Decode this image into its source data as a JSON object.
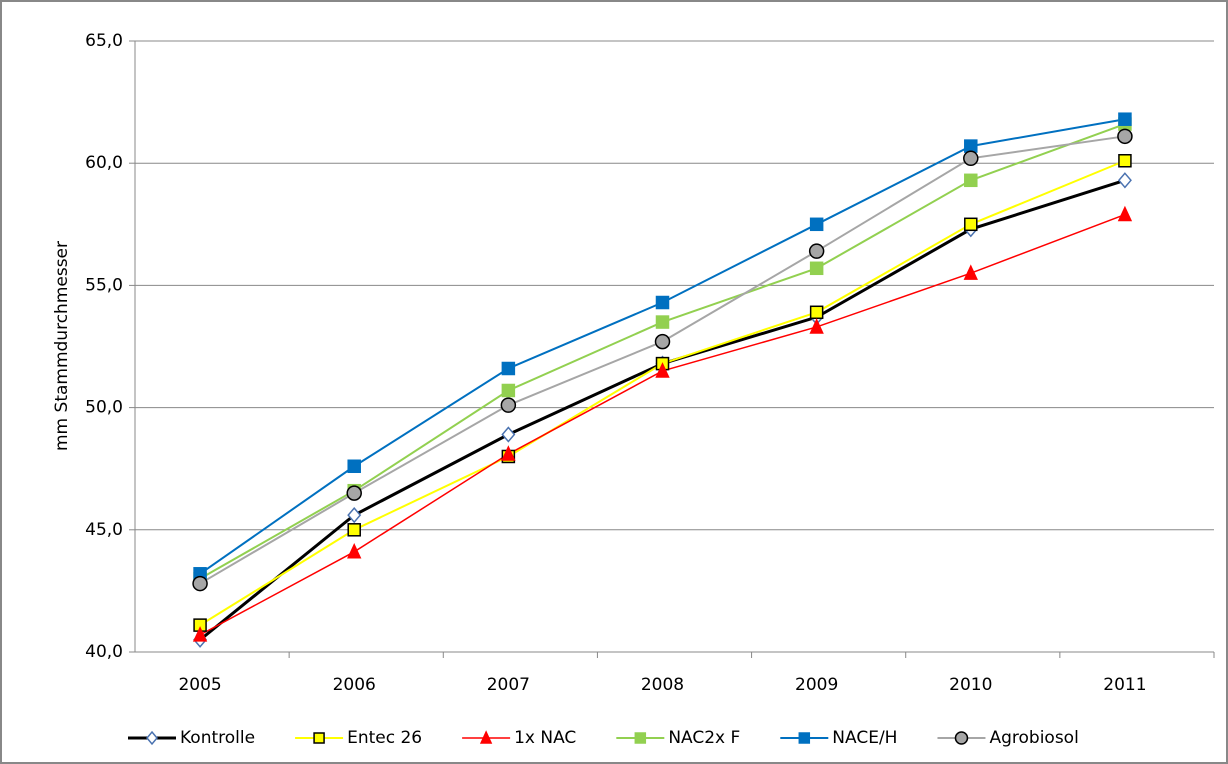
{
  "chart_data": {
    "type": "line",
    "y_label": "mm Stammdurchmesser",
    "categories": [
      "2005",
      "2006",
      "2007",
      "2008",
      "2009",
      "2010",
      "2011"
    ],
    "ylim": [
      40,
      65
    ],
    "yticks": [
      {
        "value": 40,
        "label": "40,0"
      },
      {
        "value": 45,
        "label": "45,0"
      },
      {
        "value": 50,
        "label": "50,0"
      },
      {
        "value": 55,
        "label": "55,0"
      },
      {
        "value": 60,
        "label": "60,0"
      },
      {
        "value": 65,
        "label": "65,0"
      }
    ],
    "grid": true,
    "legend": "bottom",
    "series": [
      {
        "name": "Kontrolle",
        "color": "#000000",
        "marker": "diamond",
        "marker_fill": "#ffffff",
        "marker_stroke": "#4a72b0",
        "line_width": 3,
        "values": [
          40.5,
          45.6,
          48.9,
          51.8,
          53.7,
          57.3,
          59.3
        ]
      },
      {
        "name": "Entec 26",
        "color": "#ffff00",
        "marker": "square",
        "marker_fill": "#ffff00",
        "marker_stroke": "#000000",
        "line_width": 2,
        "values": [
          41.1,
          45.0,
          48.0,
          51.8,
          53.9,
          57.5,
          60.1
        ]
      },
      {
        "name": "1x NAC",
        "color": "#ff0000",
        "marker": "triangle",
        "marker_fill": "#ff0000",
        "marker_stroke": "#ff0000",
        "line_width": 1.5,
        "values": [
          40.7,
          44.1,
          48.1,
          51.5,
          53.3,
          55.5,
          57.9
        ]
      },
      {
        "name": "NAC2x F",
        "color": "#92d050",
        "marker": "square",
        "marker_fill": "#92d050",
        "marker_stroke": "#92d050",
        "line_width": 2,
        "values": [
          43.0,
          46.6,
          50.7,
          53.5,
          55.7,
          59.3,
          61.6
        ]
      },
      {
        "name": "NACE/H",
        "color": "#0070c0",
        "marker": "square",
        "marker_fill": "#0070c0",
        "marker_stroke": "#0070c0",
        "line_width": 2,
        "values": [
          43.2,
          47.6,
          51.6,
          54.3,
          57.5,
          60.7,
          61.8
        ]
      },
      {
        "name": "Agrobiosol",
        "color": "#a6a6a6",
        "marker": "circle",
        "marker_fill": "#a6a6a6",
        "marker_stroke": "#000000",
        "line_width": 2,
        "values": [
          42.8,
          46.5,
          50.1,
          52.7,
          56.4,
          60.2,
          61.1
        ]
      }
    ]
  }
}
